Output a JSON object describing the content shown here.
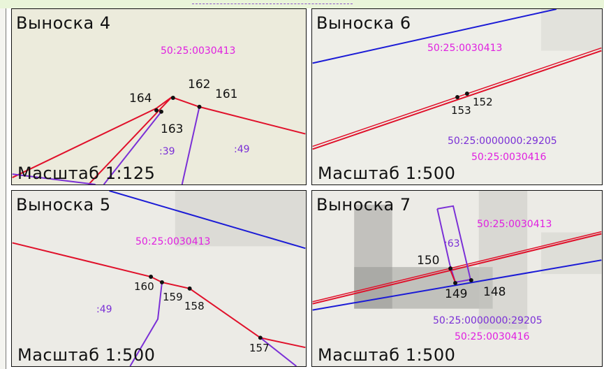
{
  "panels": [
    {
      "title": "Выноска 4",
      "scale": "Масштаб 1:125",
      "cadastral": [
        "50:25:0030413"
      ],
      "points": [
        "164",
        "162",
        "161",
        "163"
      ],
      "parcels": [
        ":39",
        ":49"
      ]
    },
    {
      "title": "Выноска 6",
      "scale": "Масштаб 1:500",
      "cadastral": [
        "50:25:0030413",
        "50:25:0000000:29205",
        "50:25:0030416"
      ],
      "points": [
        "153",
        "152"
      ],
      "parcels": []
    },
    {
      "title": "Выноска 5",
      "scale": "Масштаб 1:500",
      "cadastral": [
        "50:25:0030413"
      ],
      "points": [
        "160",
        "159",
        "158",
        "157"
      ],
      "parcels": [
        ":49"
      ]
    },
    {
      "title": "Выноска 7",
      "scale": "Масштаб 1:500",
      "cadastral": [
        "50:25:0030413",
        "50:25:0000000:29205",
        "50:25:0030416"
      ],
      "points": [
        "150",
        "149",
        "148"
      ],
      "parcels": [
        ":63"
      ]
    }
  ],
  "colors": {
    "boundary_red": "#e0102a",
    "boundary_blue": "#1a1ad6",
    "boundary_purple": "#7a2fd6",
    "label_magenta": "#e020e0"
  }
}
